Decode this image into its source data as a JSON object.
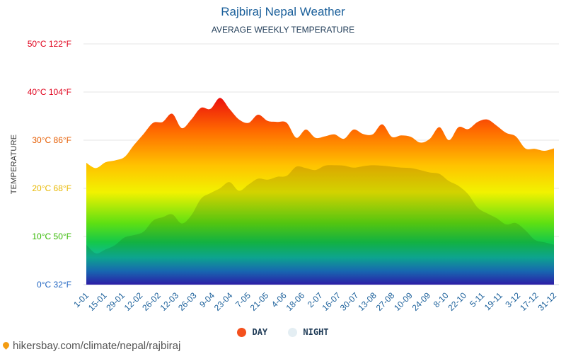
{
  "chart_data": {
    "type": "area",
    "title": "Rajbiraj Nepal Weather",
    "subtitle": "AVERAGE WEEKLY TEMPERATURE",
    "ylabel": "TEMPERATURE",
    "ylim": [
      0,
      50
    ],
    "y_ticks": [
      {
        "value": 0,
        "label": "0°C 32°F",
        "color": "#1e63c0"
      },
      {
        "value": 10,
        "label": "10°C 50°F",
        "color": "#34b800"
      },
      {
        "value": 20,
        "label": "20°C 68°F",
        "color": "#e8b800"
      },
      {
        "value": 30,
        "label": "30°C 86°F",
        "color": "#e65c00"
      },
      {
        "value": 40,
        "label": "40°C 104°F",
        "color": "#e0001b"
      },
      {
        "value": 50,
        "label": "50°C 122°F",
        "color": "#e0001b"
      }
    ],
    "x_labels": [
      "1-01",
      "15-01",
      "29-01",
      "12-02",
      "26-02",
      "12-03",
      "26-03",
      "9-04",
      "23-04",
      "7-05",
      "21-05",
      "4-06",
      "18-06",
      "2-07",
      "16-07",
      "30-07",
      "13-08",
      "27-08",
      "10-09",
      "24-09",
      "8-10",
      "22-10",
      "5-11",
      "19-11",
      "3-12",
      "17-12",
      "31-12"
    ],
    "series": [
      {
        "name": "DAY",
        "color": "#f4511e",
        "values": [
          25.3,
          24.2,
          25.4,
          25.8,
          26.5,
          29.0,
          31.3,
          33.6,
          33.8,
          35.5,
          32.5,
          34.3,
          36.7,
          36.5,
          38.8,
          36.5,
          34.3,
          33.6,
          35.3,
          34.0,
          33.8,
          33.6,
          30.5,
          32.2,
          30.5,
          30.8,
          31.2,
          30.3,
          32.2,
          31.3,
          31.2,
          33.3,
          30.7,
          31.0,
          30.7,
          29.5,
          30.3,
          32.7,
          30.0,
          32.7,
          32.3,
          33.8,
          34.3,
          33.0,
          31.5,
          30.8,
          28.3,
          28.2,
          27.8,
          28.3
        ]
      },
      {
        "name": "NIGHT",
        "color": "#e4eef3",
        "values": [
          8.3,
          6.5,
          7.3,
          8.2,
          9.8,
          10.3,
          11.0,
          13.3,
          14.0,
          14.6,
          12.7,
          14.4,
          17.8,
          19.0,
          20.0,
          21.3,
          19.5,
          20.8,
          22.0,
          21.8,
          22.4,
          22.6,
          24.5,
          24.2,
          23.8,
          24.7,
          24.8,
          24.7,
          24.3,
          24.6,
          24.8,
          24.7,
          24.5,
          24.3,
          24.2,
          23.8,
          23.3,
          23.0,
          21.5,
          20.5,
          18.8,
          16.0,
          14.8,
          13.8,
          12.5,
          12.8,
          11.3,
          9.3,
          8.8,
          8.3
        ]
      }
    ],
    "legend_position": "bottom"
  },
  "legend": {
    "day_label": "DAY",
    "night_label": "NIGHT",
    "day_color": "#f4511e",
    "night_color": "#e4eef3"
  },
  "footer": {
    "text": "hikersbay.com/climate/nepal/rajbiraj"
  }
}
